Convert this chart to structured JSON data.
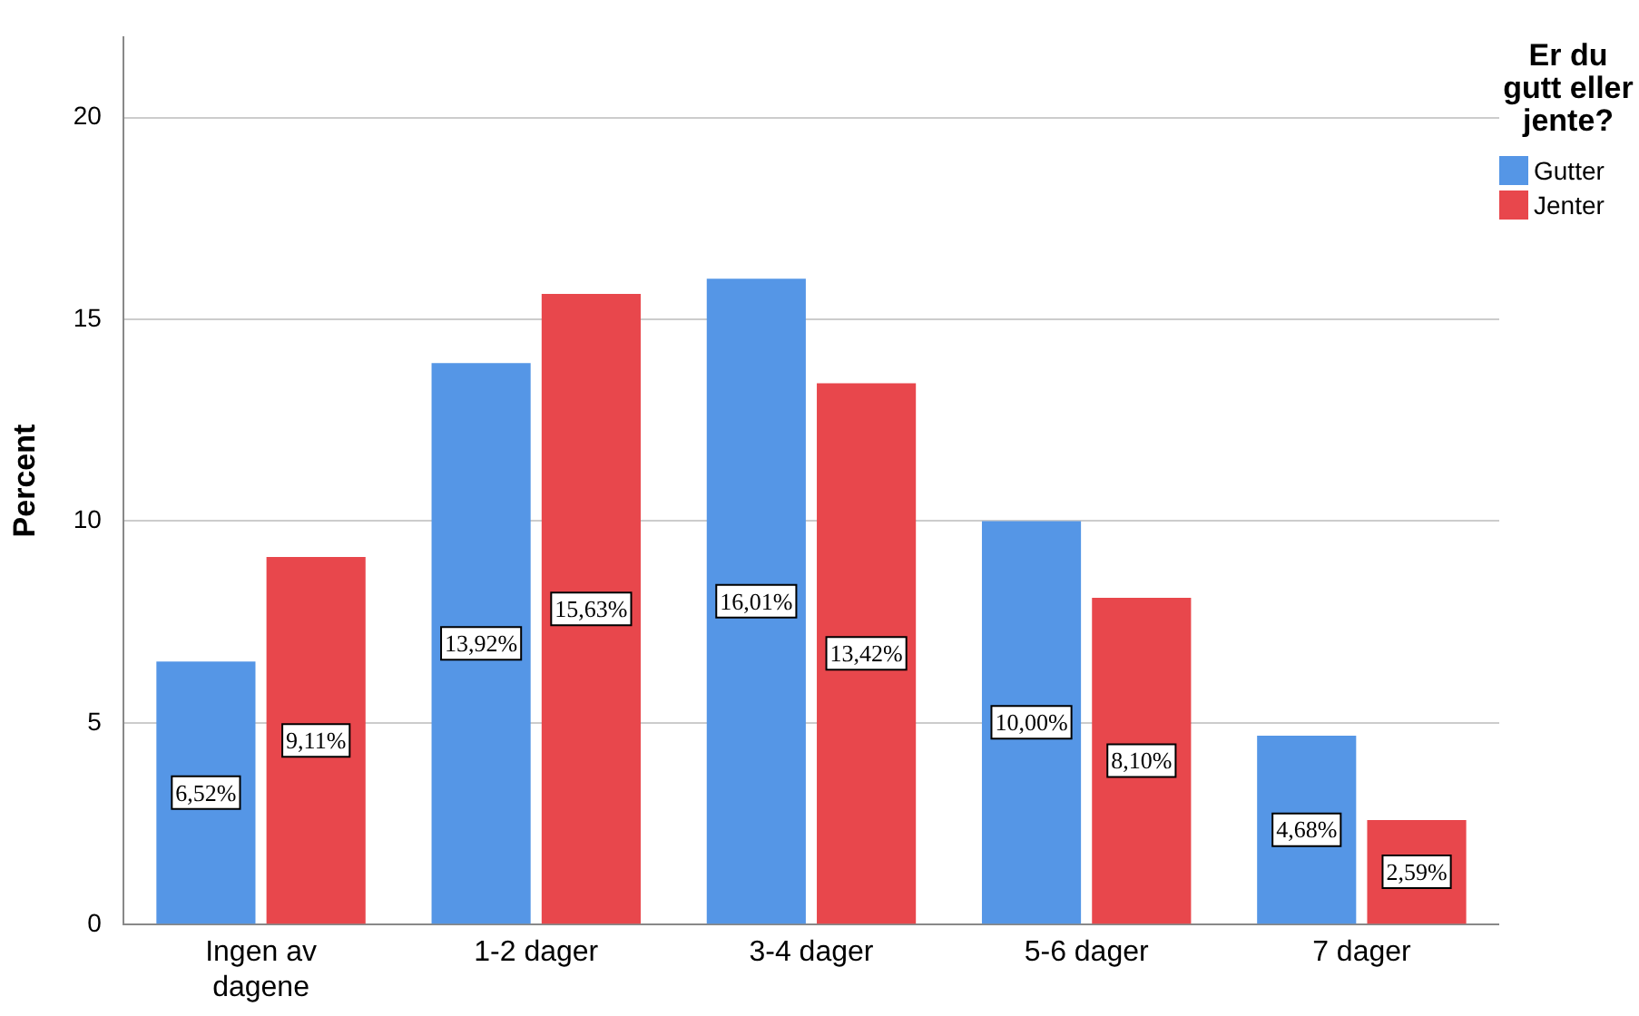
{
  "chart_data": {
    "type": "bar",
    "ylabel": "Percent",
    "legend_title": "Er du gutt eller jente?",
    "legend": "right",
    "categories": [
      "Ingen av dagene",
      "1-2 dager",
      "3-4 dager",
      "5-6 dager",
      "7 dager"
    ],
    "series": [
      {
        "name": "Gutter",
        "color": "#5596e6",
        "values": [
          6.52,
          13.92,
          16.01,
          10.0,
          4.68
        ],
        "value_labels": [
          "6,52%",
          "13,92%",
          "16,01%",
          "10,00%",
          "4,68%"
        ]
      },
      {
        "name": "Jenter",
        "color": "#e8474c",
        "values": [
          9.11,
          15.63,
          13.42,
          8.1,
          2.59
        ],
        "value_labels": [
          "9,11%",
          "15,63%",
          "13,42%",
          "8,10%",
          "2,59%"
        ]
      }
    ],
    "ylim": [
      0,
      22
    ],
    "yticks": [
      0,
      5,
      10,
      15,
      20
    ],
    "grid": "y"
  }
}
